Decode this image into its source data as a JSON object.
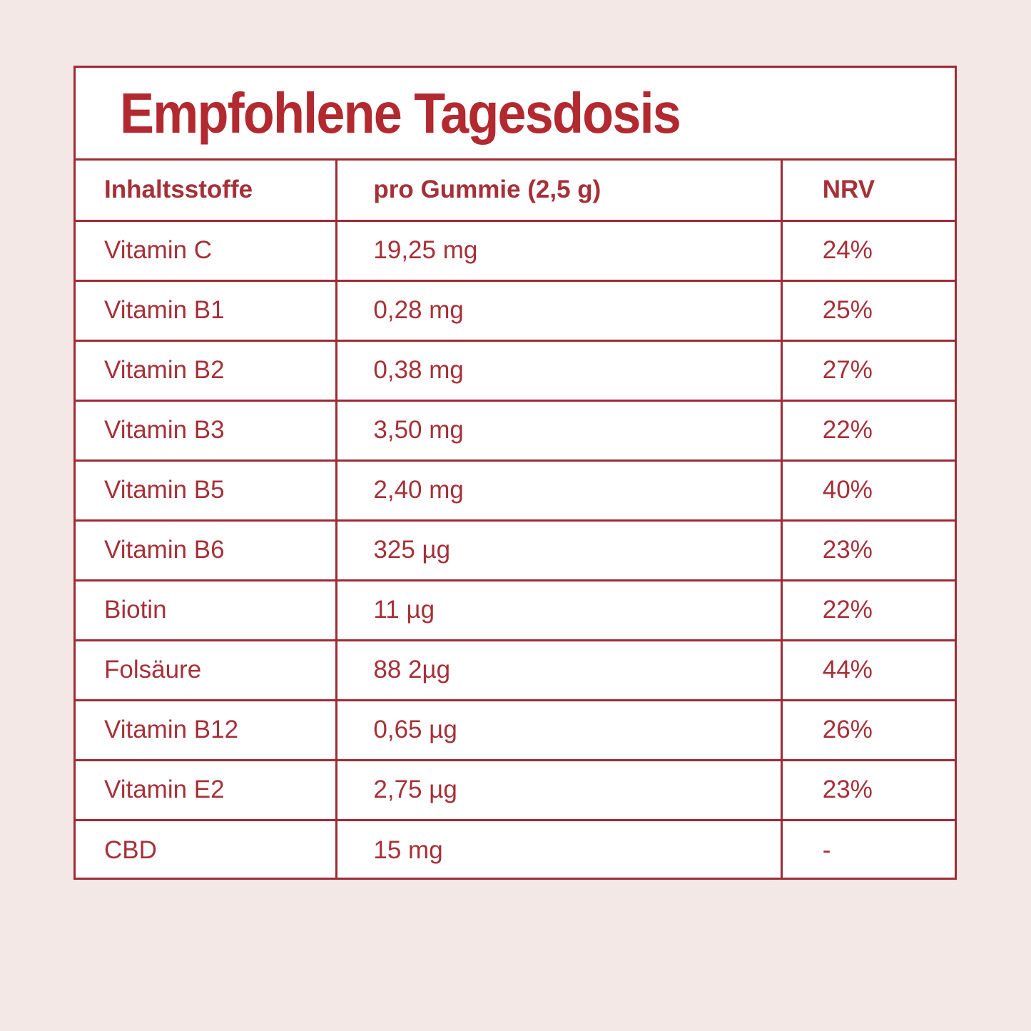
{
  "theme": {
    "page_bg": "#f3e8e6",
    "panel_bg": "#ffffff",
    "border_red": "#9d2b36",
    "text_red": "#a63038",
    "title_red": "#b2292f"
  },
  "title": "Empfohlene Tagesdosis",
  "table": {
    "headers": {
      "ingredient": "Inhaltsstoffe",
      "per_gummy": "pro Gummie (2,5 g)",
      "nrv": "NRV"
    },
    "rows": [
      {
        "ingredient": "Vitamin C",
        "amount": "19,25 mg",
        "nrv": "24%"
      },
      {
        "ingredient": "Vitamin B1",
        "amount": "0,28 mg",
        "nrv": "25%"
      },
      {
        "ingredient": "Vitamin B2",
        "amount": "0,38 mg",
        "nrv": "27%"
      },
      {
        "ingredient": "Vitamin B3",
        "amount": "3,50 mg",
        "nrv": "22%"
      },
      {
        "ingredient": "Vitamin B5",
        "amount": "2,40 mg",
        "nrv": "40%"
      },
      {
        "ingredient": "Vitamin B6",
        "amount": "325 µg",
        "nrv": "23%"
      },
      {
        "ingredient": "Biotin",
        "amount": "11 µg",
        "nrv": "22%"
      },
      {
        "ingredient": "Folsäure",
        "amount": "88 2µg",
        "nrv": "44%"
      },
      {
        "ingredient": "Vitamin B12",
        "amount": "0,65 µg",
        "nrv": "26%"
      },
      {
        "ingredient": "Vitamin E2",
        "amount": "2,75 µg",
        "nrv": "23%"
      },
      {
        "ingredient": "CBD",
        "amount": "15 mg",
        "nrv": "-"
      }
    ]
  }
}
